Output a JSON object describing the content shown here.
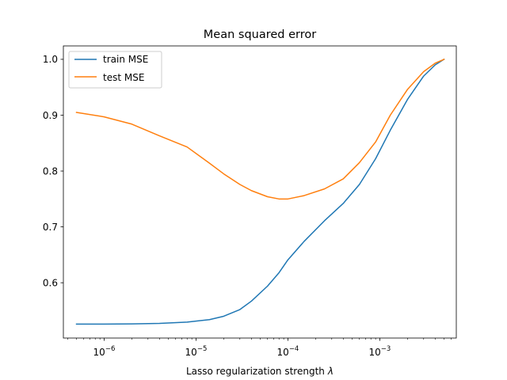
{
  "chart_data": {
    "type": "line",
    "title": "Mean squared error",
    "xlabel": "Lasso regularization strength",
    "xlabel_symbol": "λ",
    "ylabel": "",
    "x_scale": "log",
    "xlim": [
      3.6e-07,
      0.0068
    ],
    "ylim": [
      0.501,
      1.024
    ],
    "grid": false,
    "legend": "top-left",
    "x_ticks": [
      {
        "base": "10",
        "exp": "−6",
        "value": 1e-06
      },
      {
        "base": "10",
        "exp": "−5",
        "value": 1e-05
      },
      {
        "base": "10",
        "exp": "−4",
        "value": 0.0001
      },
      {
        "base": "10",
        "exp": "−3",
        "value": 0.001
      }
    ],
    "y_ticks": [
      {
        "label": "0.6",
        "value": 0.6
      },
      {
        "label": "0.7",
        "value": 0.7
      },
      {
        "label": "0.8",
        "value": 0.8
      },
      {
        "label": "0.9",
        "value": 0.9
      },
      {
        "label": "1.0",
        "value": 1.0
      }
    ],
    "series": [
      {
        "name": "train MSE",
        "color": "#1f77b4",
        "x": [
          5e-07,
          1e-06,
          2e-06,
          4e-06,
          8e-06,
          1.4e-05,
          2e-05,
          3e-05,
          4e-05,
          6e-05,
          8e-05,
          0.0001,
          0.00015,
          0.00025,
          0.0004,
          0.0006,
          0.0009,
          0.0013,
          0.002,
          0.003,
          0.004,
          0.005
        ],
        "y": [
          0.526,
          0.526,
          0.5263,
          0.5272,
          0.5295,
          0.534,
          0.54,
          0.552,
          0.567,
          0.594,
          0.618,
          0.641,
          0.674,
          0.711,
          0.742,
          0.776,
          0.822,
          0.873,
          0.928,
          0.97,
          0.99,
          1.0
        ]
      },
      {
        "name": "test MSE",
        "color": "#ff7f0e",
        "x": [
          5e-07,
          1e-06,
          2e-06,
          4e-06,
          8e-06,
          1.4e-05,
          2e-05,
          3e-05,
          4e-05,
          6e-05,
          8e-05,
          0.0001,
          0.00015,
          0.00025,
          0.0004,
          0.0006,
          0.0009,
          0.0013,
          0.002,
          0.003,
          0.004,
          0.005
        ],
        "y": [
          0.905,
          0.897,
          0.884,
          0.863,
          0.843,
          0.814,
          0.795,
          0.776,
          0.765,
          0.754,
          0.75,
          0.75,
          0.756,
          0.768,
          0.786,
          0.815,
          0.852,
          0.9,
          0.946,
          0.978,
          0.993,
          1.0
        ]
      }
    ]
  }
}
